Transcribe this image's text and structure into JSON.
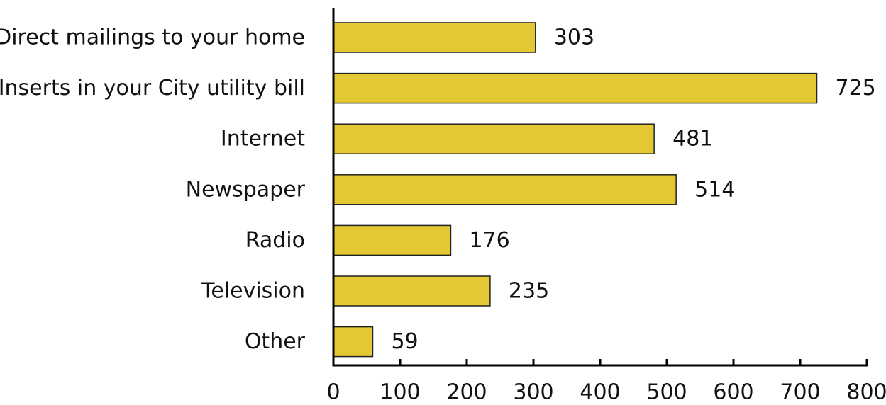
{
  "chart_data": {
    "type": "bar",
    "orientation": "horizontal",
    "categories": [
      "Direct mailings to your home",
      "Inserts in your City utility bill",
      "Internet",
      "Newspaper",
      "Radio",
      "Television",
      "Other"
    ],
    "values": [
      303,
      725,
      481,
      514,
      176,
      235,
      59
    ],
    "xlim": [
      0,
      800
    ],
    "xticks": [
      "0",
      "100",
      "200",
      "300",
      "400",
      "500",
      "600",
      "700",
      "800"
    ],
    "data_labels": true,
    "grid": false,
    "legend": "none",
    "bar_color": "#E3C733"
  }
}
